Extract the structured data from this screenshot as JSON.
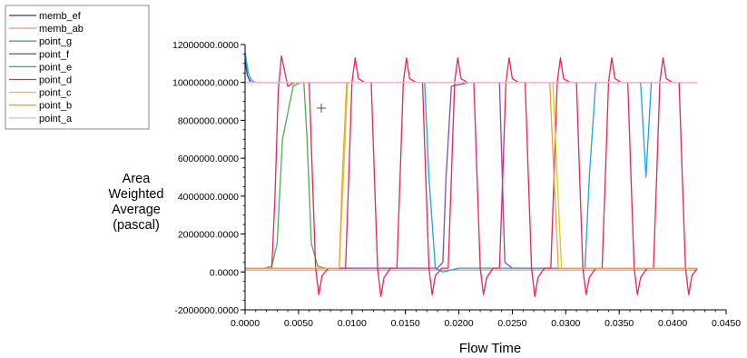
{
  "chart_data": {
    "type": "line",
    "title": "",
    "xlabel": "Flow Time",
    "ylabel": [
      "Area",
      "Weighted",
      "Average",
      "(pascal)"
    ],
    "xlim": [
      0,
      0.045
    ],
    "ylim": [
      -2000000,
      12000000
    ],
    "xticks": [
      {
        "value": 0,
        "label": "0.0000"
      },
      {
        "value": 0.005,
        "label": "0.0050"
      },
      {
        "value": 0.01,
        "label": "0.0100"
      },
      {
        "value": 0.015,
        "label": "0.0150"
      },
      {
        "value": 0.02,
        "label": "0.0200"
      },
      {
        "value": 0.025,
        "label": "0.0250"
      },
      {
        "value": 0.03,
        "label": "0.0300"
      },
      {
        "value": 0.035,
        "label": "0.0350"
      },
      {
        "value": 0.04,
        "label": "0.0400"
      },
      {
        "value": 0.045,
        "label": "0.0450"
      }
    ],
    "yticks": [
      {
        "value": 12000000,
        "label": "12000000.0000"
      },
      {
        "value": 10000000,
        "label": "10000000.0000"
      },
      {
        "value": 8000000,
        "label": "8000000.0000"
      },
      {
        "value": 6000000,
        "label": "6000000.0000"
      },
      {
        "value": 4000000,
        "label": "4000000.0000"
      },
      {
        "value": 2000000,
        "label": "2000000.0000"
      },
      {
        "value": 0,
        "label": "0.0000"
      },
      {
        "value": -2000000,
        "label": "-2000000.0000"
      }
    ],
    "legend_position": "top-left",
    "series": [
      {
        "name": "memb_ef",
        "color": "#2b3d8f",
        "x": [
          0,
          0.0002,
          0.0005,
          0.001,
          0.0423
        ],
        "y": [
          11200000,
          10400000,
          10000000,
          10000000,
          10000000
        ]
      },
      {
        "name": "memb_ab",
        "color": "#f09090",
        "x": [
          0,
          0.0423
        ],
        "y": [
          100000,
          100000
        ]
      },
      {
        "name": "point_g",
        "color": "#4caf50",
        "x": [
          0.0,
          0.0018,
          0.0025,
          0.003,
          0.0035,
          0.0045,
          0.0052,
          0.0055,
          0.0058,
          0.0062,
          0.0068,
          0.0075,
          0.0082,
          0.009,
          0.01
        ],
        "y": [
          200000,
          200000,
          300000,
          1500000,
          7000000,
          9800000,
          10000000,
          10000000,
          7000000,
          1500000,
          300000,
          200000,
          200000,
          200000,
          200000
        ]
      },
      {
        "name": "point_f",
        "color": "#7b4fc0",
        "x": [
          0.0,
          0.018,
          0.0185,
          0.0188,
          0.0193,
          0.021,
          0.0238,
          0.0243,
          0.025,
          0.0423
        ],
        "y": [
          200000,
          200000,
          500000,
          5000000,
          9800000,
          10000000,
          10000000,
          500000,
          200000,
          200000
        ]
      },
      {
        "name": "point_e",
        "color": "#1aa6d6",
        "x": [
          0.0,
          0.0003,
          0.0006,
          0.001,
          0.0025,
          0.006,
          0.0085,
          0.01,
          0.011,
          0.012,
          0.015,
          0.0168,
          0.0172,
          0.0178,
          0.0185,
          0.02,
          0.025,
          0.0318,
          0.0322,
          0.0328,
          0.0335,
          0.035,
          0.037,
          0.0375,
          0.038,
          0.0423
        ],
        "y": [
          11600000,
          10500000,
          10100000,
          10000000,
          10000000,
          10000000,
          10000000,
          10000000,
          10000000,
          10000000,
          10000000,
          10000000,
          5000000,
          200000,
          0,
          200000,
          200000,
          200000,
          5000000,
          10000000,
          10000000,
          10000000,
          10000000,
          5000000,
          10000000,
          10000000
        ]
      },
      {
        "name": "point_d",
        "color": "#e8245a",
        "x": [
          0.0,
          0.0025,
          0.0028,
          0.0031,
          0.0034,
          0.0037,
          0.004,
          0.0046,
          0.0052,
          0.006,
          0.0063,
          0.0066,
          0.0069,
          0.0072,
          0.0078,
          0.0085,
          0.0094,
          0.0097,
          0.01,
          0.0103,
          0.0106,
          0.0112,
          0.0118,
          0.0121,
          0.0124,
          0.0127,
          0.013,
          0.0136,
          0.0142,
          0.0145,
          0.0148,
          0.0151,
          0.0154,
          0.016,
          0.0166,
          0.0169,
          0.0172,
          0.0175,
          0.0178,
          0.0184,
          0.019,
          0.0193,
          0.0196,
          0.0199,
          0.0202,
          0.0208,
          0.0214,
          0.0217,
          0.022,
          0.0223,
          0.0226,
          0.0232,
          0.0238,
          0.0241,
          0.0244,
          0.0247,
          0.025,
          0.0256,
          0.0262,
          0.0265,
          0.0268,
          0.0271,
          0.0274,
          0.028,
          0.0286,
          0.0289,
          0.0292,
          0.0295,
          0.0298,
          0.0304,
          0.031,
          0.0313,
          0.0316,
          0.0319,
          0.0322,
          0.0328,
          0.0334,
          0.0337,
          0.034,
          0.0343,
          0.0346,
          0.0352,
          0.0358,
          0.0361,
          0.0364,
          0.0367,
          0.037,
          0.0376,
          0.0382,
          0.0385,
          0.0388,
          0.0391,
          0.0394,
          0.04,
          0.0406,
          0.0409,
          0.0412,
          0.0415,
          0.0418,
          0.0423
        ],
        "y": [
          200000,
          200000,
          4000000,
          9500000,
          11400000,
          10600000,
          9800000,
          10000000,
          10000000,
          10000000,
          5000000,
          200000,
          -1200000,
          -200000,
          200000,
          200000,
          200000,
          5000000,
          10000000,
          11300000,
          10200000,
          10000000,
          10000000,
          5000000,
          200000,
          -1300000,
          -300000,
          200000,
          200000,
          5000000,
          10000000,
          11300000,
          10200000,
          10000000,
          10000000,
          5000000,
          200000,
          -1200000,
          -200000,
          200000,
          200000,
          5000000,
          10000000,
          11300000,
          10200000,
          10000000,
          10000000,
          5000000,
          200000,
          -1200000,
          -300000,
          200000,
          200000,
          5000000,
          10000000,
          11300000,
          10200000,
          10000000,
          10000000,
          5000000,
          200000,
          -1300000,
          -300000,
          200000,
          200000,
          5000000,
          10000000,
          11300000,
          10200000,
          10000000,
          10000000,
          5000000,
          200000,
          -1200000,
          -300000,
          200000,
          200000,
          5000000,
          10000000,
          11300000,
          10200000,
          10000000,
          10000000,
          5000000,
          200000,
          -1200000,
          -300000,
          200000,
          200000,
          5000000,
          10000000,
          11300000,
          10200000,
          10000000,
          10000000,
          5000000,
          200000,
          -1200000,
          -200000,
          200000
        ]
      },
      {
        "name": "point_c",
        "color": "#d6cc1a",
        "x": [
          0.0,
          0.0088,
          0.0092,
          0.0096,
          0.0105,
          0.0135,
          0.014,
          0.0145,
          0.02,
          0.025,
          0.0288,
          0.0292,
          0.0296,
          0.031,
          0.0345,
          0.035,
          0.0355,
          0.0423
        ],
        "y": [
          200000,
          200000,
          5000000,
          10000000,
          10000000,
          10000000,
          10000000,
          10000000,
          10000000,
          10000000,
          10000000,
          5000000,
          200000,
          200000,
          200000,
          200000,
          200000,
          200000
        ]
      },
      {
        "name": "point_b",
        "color": "#f5a030",
        "x": [
          0.0,
          0.0088,
          0.0091,
          0.0095,
          0.01,
          0.015,
          0.025,
          0.026,
          0.0264,
          0.0268,
          0.0285,
          0.0289,
          0.0293,
          0.03,
          0.0423
        ],
        "y": [
          200000,
          200000,
          5000000,
          10000000,
          10000000,
          10000000,
          10000000,
          10000000,
          10000000,
          10000000,
          10000000,
          5000000,
          200000,
          200000,
          200000
        ]
      },
      {
        "name": "point_a",
        "color": "#f3b8c8",
        "x": [
          0,
          0.0423
        ],
        "y": [
          10000000,
          10000000
        ]
      }
    ]
  }
}
